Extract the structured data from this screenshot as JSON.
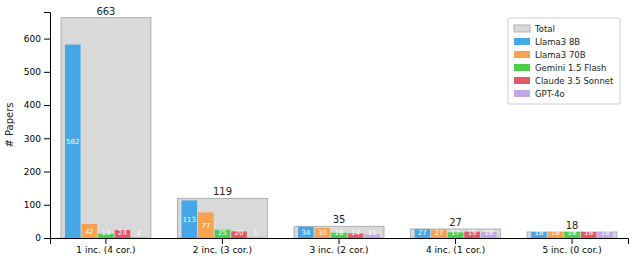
{
  "chart_data": {
    "type": "bar",
    "y_label": "# Papers",
    "categories": [
      "1 inc. (4 cor.)",
      "2 inc. (3 cor.)",
      "3 inc. (2 cor.)",
      "4 inc. (1 cor.)",
      "5 inc. (0 cor.)"
    ],
    "series": [
      {
        "name": "Total",
        "type": "background",
        "color": "#d9d9d9",
        "values": [
          663,
          119,
          35,
          27,
          18
        ]
      },
      {
        "name": "Llama3 8B",
        "color": "#45a6e8",
        "values": [
          582,
          113,
          34,
          27,
          18
        ]
      },
      {
        "name": "Llama3 70B",
        "color": "#f6a24e",
        "values": [
          42,
          77,
          30,
          27,
          18
        ]
      },
      {
        "name": "Gemini 1.5 Flash",
        "color": "#4bcf4b",
        "values": [
          13,
          25,
          16,
          17,
          18
        ]
      },
      {
        "name": "Claude 3.5 Sonnet",
        "color": "#e05a68",
        "values": [
          24,
          20,
          14,
          19,
          18
        ]
      },
      {
        "name": "GPT-4o",
        "color": "#c3a8e8",
        "values": [
          2,
          1,
          11,
          18,
          18
        ]
      }
    ],
    "ylim": [
      0,
      680
    ],
    "yticks": [
      0,
      100,
      200,
      300,
      400,
      500,
      600
    ],
    "data_labels": true,
    "legend": "top-right",
    "grid": false
  }
}
